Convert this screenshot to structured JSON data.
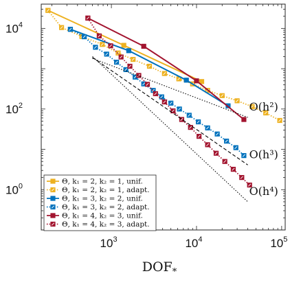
{
  "chart_data": {
    "type": "line",
    "xscale": "log",
    "yscale": "log",
    "xlim": [
      150,
      110000
    ],
    "ylim": [
      0.1,
      40000
    ],
    "xticks": [
      {
        "value": 1000,
        "base": "10",
        "exp": "3"
      },
      {
        "value": 10000,
        "base": "10",
        "exp": "4"
      },
      {
        "value": 100000,
        "base": "10",
        "exp": "5"
      }
    ],
    "yticks": [
      {
        "value": 1,
        "base": "10",
        "exp": "0"
      },
      {
        "value": 100,
        "base": "10",
        "exp": "2"
      },
      {
        "value": 10000,
        "base": "10",
        "exp": "4"
      }
    ],
    "xlabel": "DOF",
    "xlabel_sub": "*",
    "ylabel": "",
    "legend_position": "bottom-left",
    "colors": {
      "yellow": "#EDB120",
      "blue": "#0072BD",
      "red": "#A2142F"
    },
    "series": [
      {
        "name": "Θ, k₁ = 2, k₂ = 1, unif.",
        "color": "#EDB120",
        "dash": "solid",
        "x": [
          180,
          1400,
          11500
        ],
        "y": [
          28000,
          3800,
          480
        ]
      },
      {
        "name": "Θ, k₁ = 2, k₂ = 1, adapt.",
        "color": "#EDB120",
        "dash": "dotted",
        "x": [
          180,
          260,
          450,
          780,
          1200,
          1800,
          2800,
          4200,
          6200,
          9000,
          13500,
          20000,
          30000,
          45000,
          65000,
          95000
        ],
        "y": [
          28000,
          10500,
          6300,
          4000,
          2450,
          1700,
          1150,
          760,
          560,
          420,
          290,
          215,
          160,
          115,
          80,
          52
        ]
      },
      {
        "name": "Θ, k₁ = 3, k₂ = 2, unif.",
        "color": "#0072BD",
        "dash": "solid",
        "x": [
          330,
          1600,
          7600,
          23500
        ],
        "y": [
          9500,
          2800,
          520,
          120
        ]
      },
      {
        "name": "Θ, k₁ = 3, k₂ = 2, adapt.",
        "color": "#0072BD",
        "dash": "dotted",
        "x": [
          330,
          480,
          650,
          880,
          1150,
          1480,
          1900,
          2400,
          3100,
          3900,
          5000,
          6300,
          8200,
          10500,
          13500,
          17500,
          22500,
          29000,
          36000
        ],
        "y": [
          9500,
          6200,
          3400,
          2300,
          1450,
          950,
          620,
          420,
          290,
          200,
          140,
          100,
          70,
          48,
          34,
          24,
          16,
          11,
          7
        ]
      },
      {
        "name": "Θ, k₁ = 4, k₂ = 3, unif.",
        "color": "#A2142F",
        "dash": "solid",
        "x": [
          530,
          2400,
          10000,
          36000
        ],
        "y": [
          18000,
          3600,
          500,
          55
        ]
      },
      {
        "name": "Θ, k₁ = 4, k₂ = 3, adapt.",
        "color": "#A2142F",
        "dash": "dotted",
        "x": [
          530,
          720,
          980,
          1300,
          1650,
          2100,
          2650,
          3300,
          4200,
          5300,
          6700,
          8500,
          10700,
          13500,
          17000,
          21500,
          27000,
          34000,
          42000
        ],
        "y": [
          18000,
          6500,
          3700,
          1950,
          1150,
          680,
          410,
          240,
          150,
          90,
          55,
          35,
          21,
          13,
          8,
          5,
          3.2,
          2.0,
          1.3
        ]
      }
    ],
    "reference_lines": [
      {
        "label": "O(h²)",
        "dash": "dotted",
        "x": [
          600,
          40000
        ],
        "y": [
          1800,
          62
        ]
      },
      {
        "label": "O(h³)",
        "dash": "dashed",
        "x": [
          600,
          40000
        ],
        "y": [
          1900,
          4.1
        ]
      },
      {
        "label": "O(h⁴)",
        "dash": "dotted",
        "x": [
          600,
          40000
        ],
        "y": [
          2000,
          0.5
        ]
      }
    ]
  }
}
